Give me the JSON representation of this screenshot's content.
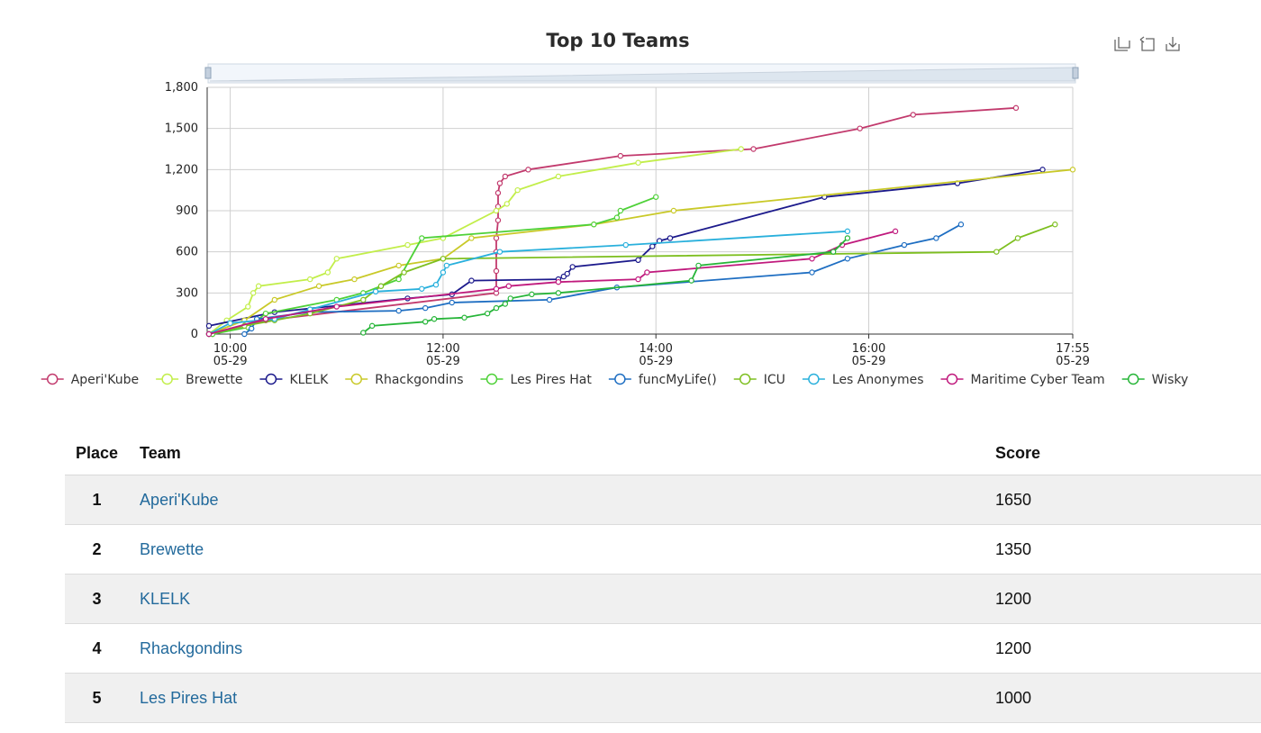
{
  "chart_data": {
    "type": "line",
    "title": "Top 10 Teams",
    "xlabel": "",
    "ylabel": "",
    "x_axis": {
      "type": "time",
      "min": "05-29 09:47",
      "max": "05-29 17:55",
      "ticks": [
        {
          "time": "10:00",
          "date": "05-29"
        },
        {
          "time": "12:00",
          "date": "05-29"
        },
        {
          "time": "14:00",
          "date": "05-29"
        },
        {
          "time": "16:00",
          "date": "05-29"
        },
        {
          "time": "17:55",
          "date": "05-29"
        }
      ]
    },
    "y_axis": {
      "min": 0,
      "max": 1800,
      "ticks": [
        "0",
        "300",
        "600",
        "900",
        "1,200",
        "1,500",
        "1,800"
      ]
    },
    "grid": true,
    "legend_position": "bottom",
    "toolbox": [
      "data-zoom",
      "restore",
      "save-as-image"
    ],
    "series": [
      {
        "name": "Aperi'Kube",
        "color": "#c23a6d",
        "points": [
          [
            "09:50",
            0
          ],
          [
            "10:20",
            100
          ],
          [
            "12:30",
            300
          ],
          [
            "12:30",
            460
          ],
          [
            "12:30",
            600
          ],
          [
            "12:30",
            700
          ],
          [
            "12:31",
            830
          ],
          [
            "12:31",
            930
          ],
          [
            "12:31",
            1030
          ],
          [
            "12:32",
            1100
          ],
          [
            "12:35",
            1150
          ],
          [
            "12:48",
            1200
          ],
          [
            "13:40",
            1300
          ],
          [
            "14:55",
            1350
          ],
          [
            "15:55",
            1500
          ],
          [
            "16:25",
            1600
          ],
          [
            "17:23",
            1650
          ]
        ]
      },
      {
        "name": "Brewette",
        "color": "#c2ee4a",
        "points": [
          [
            "09:48",
            0
          ],
          [
            "09:58",
            100
          ],
          [
            "10:10",
            200
          ],
          [
            "10:13",
            300
          ],
          [
            "10:16",
            350
          ],
          [
            "10:45",
            400
          ],
          [
            "10:55",
            450
          ],
          [
            "11:00",
            550
          ],
          [
            "11:40",
            650
          ],
          [
            "12:00",
            700
          ],
          [
            "12:30",
            900
          ],
          [
            "12:36",
            950
          ],
          [
            "12:42",
            1050
          ],
          [
            "13:05",
            1150
          ],
          [
            "13:50",
            1250
          ],
          [
            "14:48",
            1350
          ]
        ]
      },
      {
        "name": "KLELK",
        "color": "#1c1a8c",
        "points": [
          [
            "09:48",
            60
          ],
          [
            "10:25",
            160
          ],
          [
            "11:40",
            260
          ],
          [
            "12:05",
            290
          ],
          [
            "12:16",
            390
          ],
          [
            "13:05",
            400
          ],
          [
            "13:08",
            420
          ],
          [
            "13:10",
            440
          ],
          [
            "13:13",
            490
          ],
          [
            "13:50",
            540
          ],
          [
            "13:58",
            640
          ],
          [
            "14:02",
            680
          ],
          [
            "14:08",
            700
          ],
          [
            "15:35",
            1000
          ],
          [
            "16:50",
            1100
          ],
          [
            "17:38",
            1200
          ]
        ]
      },
      {
        "name": "Rhackgondins",
        "color": "#c9c928",
        "points": [
          [
            "09:48",
            0
          ],
          [
            "10:08",
            100
          ],
          [
            "10:25",
            250
          ],
          [
            "10:50",
            350
          ],
          [
            "11:10",
            400
          ],
          [
            "11:35",
            500
          ],
          [
            "12:00",
            550
          ],
          [
            "12:16",
            700
          ],
          [
            "13:25",
            800
          ],
          [
            "14:10",
            900
          ],
          [
            "17:55",
            1200
          ]
        ]
      },
      {
        "name": "Les Pires Hat",
        "color": "#4ed138",
        "points": [
          [
            "09:50",
            0
          ],
          [
            "10:10",
            50
          ],
          [
            "10:20",
            150
          ],
          [
            "11:00",
            250
          ],
          [
            "11:15",
            300
          ],
          [
            "11:25",
            350
          ],
          [
            "11:35",
            400
          ],
          [
            "11:48",
            700
          ],
          [
            "13:25",
            800
          ],
          [
            "13:38",
            850
          ],
          [
            "13:40",
            900
          ],
          [
            "14:00",
            1000
          ]
        ]
      },
      {
        "name": "funcMyLife()",
        "color": "#1e6ec2",
        "points": [
          [
            "10:08",
            0
          ],
          [
            "10:12",
            40
          ],
          [
            "10:15",
            110
          ],
          [
            "10:45",
            160
          ],
          [
            "11:35",
            170
          ],
          [
            "11:50",
            190
          ],
          [
            "12:05",
            230
          ],
          [
            "13:00",
            250
          ],
          [
            "13:38",
            340
          ],
          [
            "15:28",
            450
          ],
          [
            "15:48",
            550
          ],
          [
            "16:20",
            650
          ],
          [
            "16:38",
            700
          ],
          [
            "16:52",
            800
          ]
        ]
      },
      {
        "name": "ICU",
        "color": "#7ebf20",
        "points": [
          [
            "09:48",
            0
          ],
          [
            "10:08",
            60
          ],
          [
            "10:25",
            100
          ],
          [
            "10:45",
            150
          ],
          [
            "11:15",
            250
          ],
          [
            "11:25",
            350
          ],
          [
            "11:38",
            450
          ],
          [
            "12:00",
            550
          ],
          [
            "17:12",
            600
          ],
          [
            "17:24",
            700
          ],
          [
            "17:45",
            800
          ]
        ]
      },
      {
        "name": "Les Anonymes",
        "color": "#29b0dc",
        "points": [
          [
            "09:48",
            0
          ],
          [
            "10:00",
            80
          ],
          [
            "10:25",
            110
          ],
          [
            "10:45",
            180
          ],
          [
            "11:22",
            310
          ],
          [
            "11:48",
            330
          ],
          [
            "11:56",
            360
          ],
          [
            "12:00",
            450
          ],
          [
            "12:02",
            500
          ],
          [
            "12:32",
            600
          ],
          [
            "13:43",
            650
          ],
          [
            "15:48",
            750
          ]
        ]
      },
      {
        "name": "Maritime Cyber Team",
        "color": "#c01a7d",
        "points": [
          [
            "09:48",
            0
          ],
          [
            "10:20",
            110
          ],
          [
            "11:00",
            200
          ],
          [
            "12:30",
            330
          ],
          [
            "12:37",
            350
          ],
          [
            "13:05",
            380
          ],
          [
            "13:50",
            400
          ],
          [
            "13:55",
            450
          ],
          [
            "15:28",
            550
          ],
          [
            "15:45",
            650
          ],
          [
            "16:15",
            750
          ]
        ]
      },
      {
        "name": "Wisky",
        "color": "#26b538",
        "points": [
          [
            "11:15",
            10
          ],
          [
            "11:20",
            60
          ],
          [
            "11:50",
            90
          ],
          [
            "11:55",
            110
          ],
          [
            "12:12",
            120
          ],
          [
            "12:25",
            150
          ],
          [
            "12:30",
            190
          ],
          [
            "12:35",
            220
          ],
          [
            "12:38",
            260
          ],
          [
            "12:50",
            290
          ],
          [
            "13:05",
            300
          ],
          [
            "14:20",
            390
          ],
          [
            "14:24",
            500
          ],
          [
            "15:40",
            600
          ],
          [
            "15:48",
            700
          ]
        ]
      }
    ]
  },
  "table": {
    "headers": {
      "place": "Place",
      "team": "Team",
      "score": "Score"
    },
    "rows": [
      {
        "place": "1",
        "team": "Aperi'Kube",
        "score": "1650"
      },
      {
        "place": "2",
        "team": "Brewette",
        "score": "1350"
      },
      {
        "place": "3",
        "team": "KLELK",
        "score": "1200"
      },
      {
        "place": "4",
        "team": "Rhackgondins",
        "score": "1200"
      },
      {
        "place": "5",
        "team": "Les Pires Hat",
        "score": "1000"
      }
    ]
  }
}
